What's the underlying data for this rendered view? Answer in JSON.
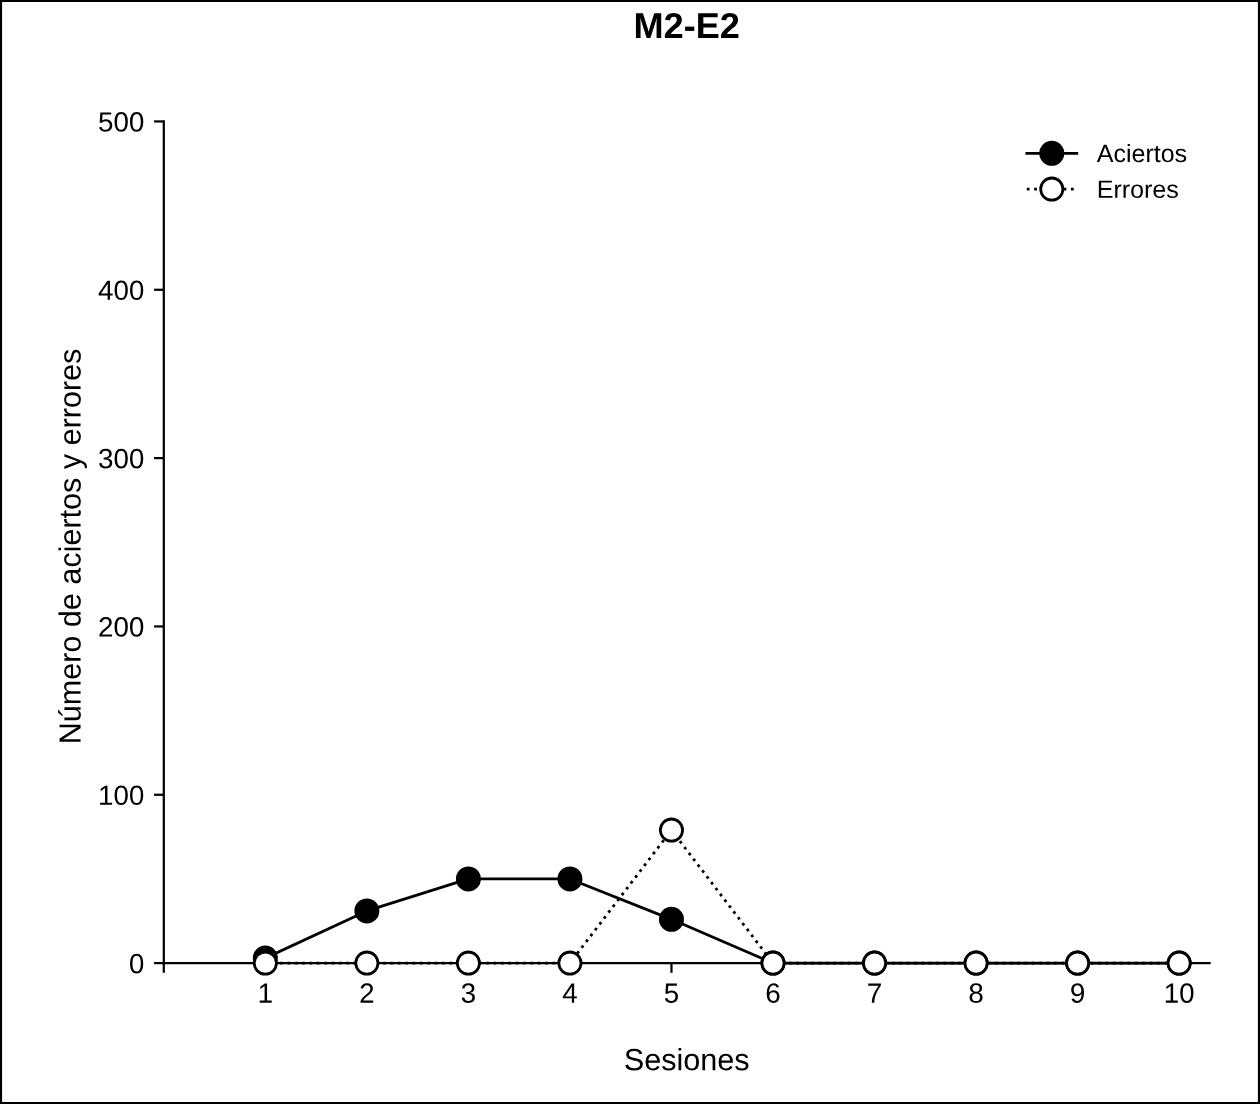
{
  "chart_data": {
    "type": "line",
    "title": "M2-E2",
    "xlabel": "Sesiones",
    "ylabel": "Número de aciertos y errores",
    "x": [
      1,
      2,
      3,
      4,
      5,
      6,
      7,
      8,
      9,
      10
    ],
    "series": [
      {
        "name": "Aciertos",
        "color": "#000000",
        "line_style": "solid",
        "values": [
          3,
          31,
          50,
          50,
          26,
          0,
          0,
          0,
          0,
          0
        ]
      },
      {
        "name": "Errores",
        "color": "#ffffff",
        "line_style": "dotted",
        "values": [
          0,
          0,
          0,
          0,
          79,
          0,
          0,
          0,
          0,
          0
        ]
      }
    ],
    "xlim": [
      0,
      10.3
    ],
    "xticks": [
      1,
      2,
      3,
      4,
      5,
      6,
      7,
      8,
      9,
      10
    ],
    "ylim": [
      -5,
      500
    ],
    "yticks": [
      0,
      100,
      200,
      300,
      400,
      500
    ],
    "marker": "circle",
    "grid": false,
    "legend": "top right"
  }
}
